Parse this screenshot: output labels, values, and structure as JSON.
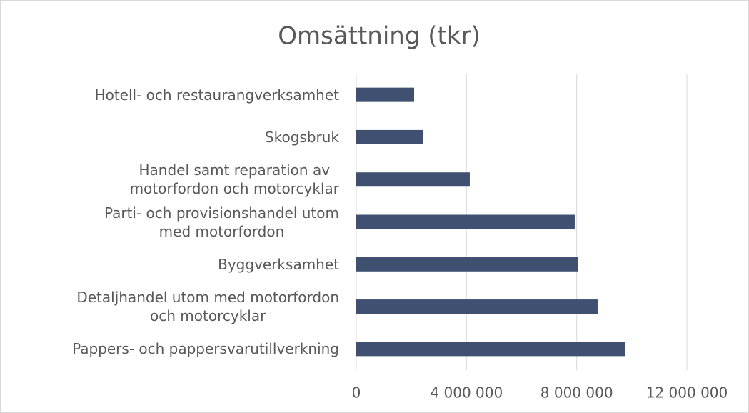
{
  "chart_data": {
    "type": "barh",
    "title": "Omsättning (tkr)",
    "categories": [
      "Hotell- och restaurangverksamhet",
      "Skogsbruk",
      "Handel samt reparation av\nmotorfordon och motorcyklar",
      "Parti- och provisionshandel utom\nmed motorfordon",
      "Byggverksamhet",
      "Detaljhandel utom med motorfordon\noch motorcyklar",
      "Pappers- och pappersvarutillverkning"
    ],
    "values": [
      2100000,
      2430000,
      4120000,
      7930000,
      8060000,
      8760000,
      9770000
    ],
    "color": "#3f5070",
    "xlim": [
      0,
      12000000
    ],
    "xticks": [
      0,
      {
        "value": 4000000,
        "label": "4 000 000"
      },
      {
        "value": 8000000,
        "label": "8 000 000"
      },
      {
        "value": 12000000,
        "label": "12 000 000"
      }
    ],
    "grid": true
  }
}
